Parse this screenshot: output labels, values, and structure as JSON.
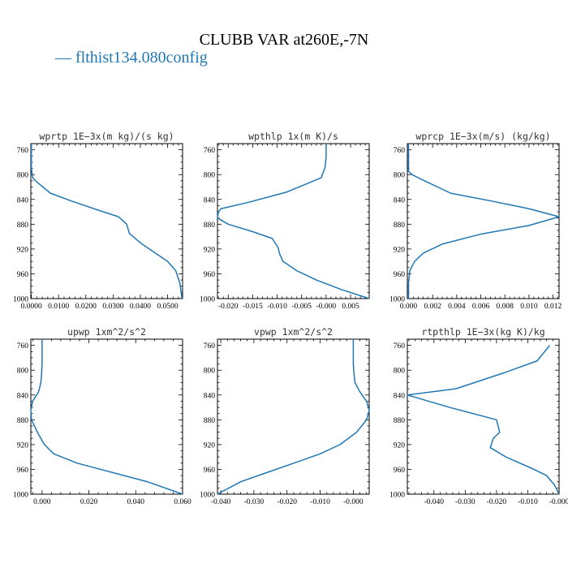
{
  "figure": {
    "title": "CLUBB VAR at260E,-7N",
    "legend": {
      "label": "— flthist134.080config",
      "color": "#1f77b4"
    }
  },
  "chart_data": [
    {
      "type": "line",
      "title": "wprtp   1E−3x(m kg)/(s kg)",
      "xlim": [
        -0.0002,
        0.0555
      ],
      "ylim": [
        1000,
        750
      ],
      "xticks": [
        0.0,
        0.01,
        0.02,
        0.03,
        0.04,
        0.05
      ],
      "xticklabels": [
        "0.0000",
        "0.0100",
        "0.0200",
        "0.0300",
        "0.0400",
        "0.0500"
      ],
      "yticks": [
        760,
        800,
        840,
        880,
        920,
        960,
        1000
      ],
      "yticklabels": [
        "760",
        "800",
        "840",
        "880",
        "920",
        "960",
        "1000"
      ],
      "series": [
        {
          "x": [
            0.0,
            0.0,
            0.0005,
            0.0015,
            0.007,
            0.015,
            0.025,
            0.032,
            0.035,
            0.036,
            0.04,
            0.045,
            0.05,
            0.053,
            0.0545,
            0.0553
          ],
          "y": [
            750,
            790,
            805,
            810,
            830,
            843,
            858,
            868,
            880,
            895,
            910,
            925,
            940,
            955,
            975,
            1000
          ]
        }
      ]
    },
    {
      "type": "line",
      "title": "wpthlp   1x(m K)/s",
      "xlim": [
        -0.0222,
        0.0088
      ],
      "ylim": [
        1000,
        750
      ],
      "xticks": [
        -0.02,
        -0.015,
        -0.01,
        -0.005,
        0.0,
        0.005
      ],
      "xticklabels": [
        "-0.020",
        "-0.015",
        "-0.010",
        "-0.005",
        "-0.000",
        "0.005"
      ],
      "yticks": [
        760,
        800,
        840,
        880,
        920,
        960,
        1000
      ],
      "yticklabels": [
        "760",
        "800",
        "840",
        "880",
        "920",
        "960",
        "1000"
      ],
      "series": [
        {
          "x": [
            0.0,
            0.0,
            -0.0002,
            -0.001,
            -0.008,
            -0.016,
            -0.0215,
            -0.022,
            -0.0222,
            -0.02,
            -0.015,
            -0.011,
            -0.0098,
            -0.0095,
            -0.0088,
            -0.006,
            -0.002,
            0.003,
            0.0088
          ],
          "y": [
            750,
            770,
            788,
            805,
            828,
            845,
            855,
            860,
            870,
            880,
            892,
            903,
            918,
            928,
            940,
            955,
            970,
            985,
            1000
          ]
        }
      ]
    },
    {
      "type": "line",
      "title": "wprcp   1E−3x(m/s) (kg/kg)",
      "xlim": [
        -0.0001,
        0.0125
      ],
      "ylim": [
        1000,
        750
      ],
      "xticks": [
        0.0,
        0.002,
        0.004,
        0.006,
        0.008,
        0.01,
        0.012
      ],
      "xticklabels": [
        "0.000",
        "0.002",
        "0.004",
        "0.006",
        "0.008",
        "0.010",
        "0.012"
      ],
      "yticks": [
        760,
        800,
        840,
        880,
        920,
        960,
        1000
      ],
      "yticklabels": [
        "760",
        "800",
        "840",
        "880",
        "920",
        "960",
        "1000"
      ],
      "series": [
        {
          "x": [
            0.0,
            0.0,
            0.0003,
            0.0008,
            0.0035,
            0.007,
            0.01,
            0.0125,
            0.01,
            0.006,
            0.0028,
            0.0012,
            0.0005,
            0.0001,
            0.0,
            0.0
          ],
          "y": [
            750,
            795,
            800,
            805,
            830,
            843,
            855,
            868,
            882,
            896,
            912,
            927,
            940,
            955,
            975,
            1000
          ]
        }
      ]
    },
    {
      "type": "line",
      "title": "upwp   1xm^2/s^2",
      "xlim": [
        -0.0048,
        0.06
      ],
      "ylim": [
        1000,
        750
      ],
      "xticks": [
        0.0,
        0.02,
        0.04,
        0.06
      ],
      "xticklabels": [
        "0.000",
        "0.020",
        "0.040",
        "0.060"
      ],
      "yticks": [
        760,
        800,
        840,
        880,
        920,
        960,
        1000
      ],
      "yticklabels": [
        "760",
        "800",
        "840",
        "880",
        "920",
        "960",
        "1000"
      ],
      "series": [
        {
          "x": [
            0.0,
            0.0,
            -0.0002,
            -0.0005,
            -0.0015,
            -0.004,
            -0.0048,
            -0.0045,
            -0.002,
            0.001,
            0.005,
            0.015,
            0.03,
            0.045,
            0.06
          ],
          "y": [
            750,
            790,
            805,
            820,
            835,
            850,
            865,
            880,
            900,
            920,
            935,
            950,
            965,
            980,
            1000
          ]
        }
      ]
    },
    {
      "type": "line",
      "title": "vpwp   1xm^2/s^2",
      "xlim": [
        -0.041,
        0.0048
      ],
      "ylim": [
        1000,
        750
      ],
      "xticks": [
        -0.04,
        -0.03,
        -0.02,
        -0.01,
        0.0
      ],
      "xticklabels": [
        "-0.040",
        "-0.030",
        "-0.020",
        "-0.010",
        "-0.000"
      ],
      "yticks": [
        760,
        800,
        840,
        880,
        920,
        960,
        1000
      ],
      "yticklabels": [
        "760",
        "800",
        "840",
        "880",
        "920",
        "960",
        "1000"
      ],
      "series": [
        {
          "x": [
            0.0,
            0.0,
            0.0002,
            0.0005,
            0.002,
            0.004,
            0.0048,
            0.004,
            0.001,
            -0.004,
            -0.01,
            -0.018,
            -0.026,
            -0.034,
            -0.041
          ],
          "y": [
            750,
            790,
            805,
            820,
            835,
            850,
            865,
            880,
            900,
            920,
            935,
            950,
            965,
            980,
            1000
          ]
        }
      ]
    },
    {
      "type": "line",
      "title": "rtpthlp   1E−3x(kg K)/kg",
      "xlim": [
        -0.0485,
        0.0
      ],
      "ylim": [
        1000,
        750
      ],
      "xticks": [
        -0.04,
        -0.03,
        -0.02,
        -0.01,
        0.0
      ],
      "xticklabels": [
        "-0.040",
        "-0.030",
        "-0.020",
        "-0.010",
        "-0.000"
      ],
      "yticks": [
        760,
        800,
        840,
        880,
        920,
        960,
        1000
      ],
      "yticklabels": [
        "760",
        "800",
        "840",
        "880",
        "920",
        "960",
        "1000"
      ],
      "series": [
        {
          "x": [
            -0.003,
            -0.007,
            -0.018,
            -0.033,
            -0.0485,
            -0.035,
            -0.02,
            -0.019,
            -0.021,
            -0.022,
            -0.017,
            -0.008,
            -0.004,
            -0.0015,
            0.0
          ],
          "y": [
            760,
            785,
            805,
            830,
            840,
            860,
            880,
            900,
            910,
            925,
            940,
            960,
            970,
            985,
            1000
          ]
        }
      ]
    }
  ]
}
